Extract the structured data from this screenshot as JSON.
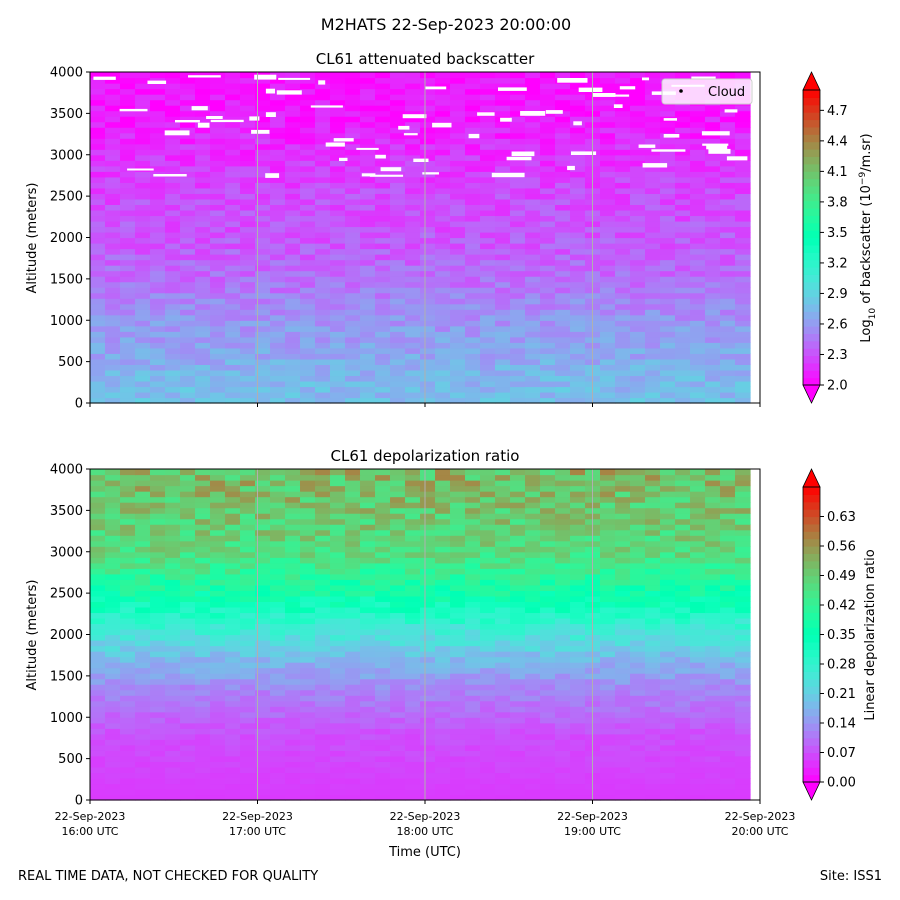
{
  "figure": {
    "suptitle": "M2HATS 22-Sep-2023 20:00:00",
    "footer_left": "REAL TIME DATA, NOT CHECKED FOR QUALITY",
    "footer_right": "Site: ISS1"
  },
  "chart_data": [
    {
      "type": "heatmap",
      "title": "CL61 attenuated backscatter",
      "ylabel": "Altitude (meters)",
      "xlabel": "",
      "x_ticks": [
        "22-Sep-2023\n16:00 UTC",
        "22-Sep-2023\n17:00 UTC",
        "22-Sep-2023\n18:00 UTC",
        "22-Sep-2023\n19:00 UTC",
        "22-Sep-2023\n20:00 UTC"
      ],
      "x_tick_labels_shown": false,
      "y_ticks": [
        0,
        500,
        1000,
        1500,
        2000,
        2500,
        3000,
        3500,
        4000
      ],
      "ylim": [
        0,
        4000
      ],
      "grid_x": true,
      "legend": {
        "entries": [
          "Cloud"
        ],
        "placement": "top-right"
      },
      "colorbar": {
        "label_prefix": "Log",
        "label_sub": "10",
        "label_mid": " of backscatter (10",
        "label_sup": "−9",
        "label_suffix": "/m.sr)",
        "ticks": [
          "2.0",
          "2.3",
          "2.6",
          "2.9",
          "3.2",
          "3.5",
          "3.8",
          "4.1",
          "4.4",
          "4.7"
        ],
        "range": [
          2.0,
          4.9
        ],
        "colormap": "rainbow",
        "extend": "both"
      },
      "profile": [
        {
          "altitude": 0,
          "value": 2.78
        },
        {
          "altitude": 300,
          "value": 2.74
        },
        {
          "altitude": 600,
          "value": 2.66
        },
        {
          "altitude": 1000,
          "value": 2.58
        },
        {
          "altitude": 1250,
          "value": 2.52
        },
        {
          "altitude": 1400,
          "value": 2.44
        },
        {
          "altitude": 2000,
          "value": 2.32
        },
        {
          "altitude": 2500,
          "value": 2.28
        },
        {
          "altitude": 3000,
          "value": 2.18
        },
        {
          "altitude": 3500,
          "value": 2.08
        },
        {
          "altitude": 4000,
          "value": 2.05
        }
      ]
    },
    {
      "type": "heatmap",
      "title": "CL61 depolarization ratio",
      "ylabel": "Altitude (meters)",
      "xlabel": "Time (UTC)",
      "x_ticks": [
        "22-Sep-2023\n16:00 UTC",
        "22-Sep-2023\n17:00 UTC",
        "22-Sep-2023\n18:00 UTC",
        "22-Sep-2023\n19:00 UTC",
        "22-Sep-2023\n20:00 UTC"
      ],
      "x_tick_labels_shown": true,
      "y_ticks": [
        0,
        500,
        1000,
        1500,
        2000,
        2500,
        3000,
        3500,
        4000
      ],
      "ylim": [
        0,
        4000
      ],
      "grid_x": true,
      "colorbar": {
        "label": "Linear depolarization ratio",
        "ticks": [
          "0.00",
          "0.07",
          "0.14",
          "0.21",
          "0.28",
          "0.35",
          "0.42",
          "0.49",
          "0.56",
          "0.63"
        ],
        "range": [
          0.0,
          0.7
        ],
        "colormap": "rainbow",
        "extend": "both"
      },
      "profile": [
        {
          "altitude": 0,
          "value": 0.05
        },
        {
          "altitude": 800,
          "value": 0.07
        },
        {
          "altitude": 1300,
          "value": 0.12
        },
        {
          "altitude": 1700,
          "value": 0.18
        },
        {
          "altitude": 2100,
          "value": 0.27
        },
        {
          "altitude": 2500,
          "value": 0.37
        },
        {
          "altitude": 3000,
          "value": 0.47
        },
        {
          "altitude": 3500,
          "value": 0.5
        },
        {
          "altitude": 4000,
          "value": 0.52
        }
      ]
    }
  ]
}
